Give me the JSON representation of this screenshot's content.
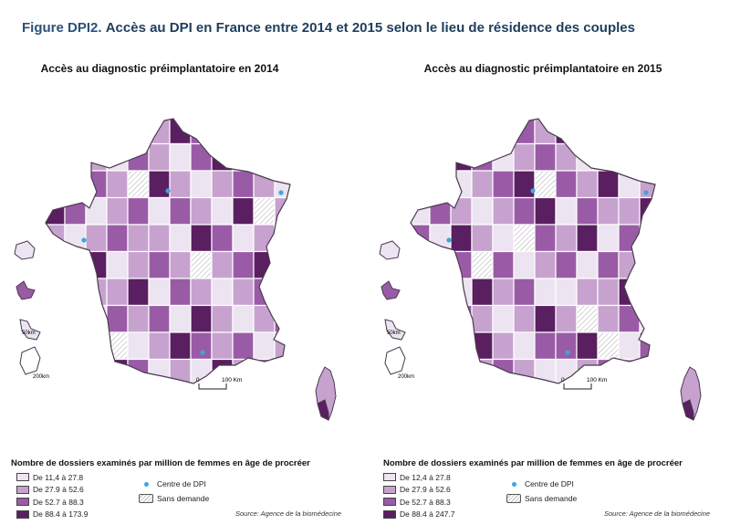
{
  "figure": {
    "label": "Figure DPI2.",
    "title": "Accès au DPI en France entre 2014 et 2015 selon le lieu de résidence des couples"
  },
  "colors": {
    "class1": "#ece4f1",
    "class2": "#c7a2cf",
    "class3": "#9a5ba6",
    "class4": "#5a1f60",
    "no_demand": "#ffffff",
    "centre_dot": "#3aa8d8",
    "border": "#4a3a4d"
  },
  "maps": [
    {
      "title": "Accès au diagnostic préimplantatoire en 2014",
      "scale_bar": {
        "zero": "0",
        "label": "100 Km"
      },
      "inset_scales": [
        "50km",
        "200km"
      ],
      "legend_title": "Nombre de dossiers examinés par million de femmes en âge de procréer",
      "legend": [
        {
          "label": "De 11,4 à 27.8",
          "class": "class1"
        },
        {
          "label": "De 27.9 à 52.6",
          "class": "class2"
        },
        {
          "label": "De 52.7 à 88.3",
          "class": "class3"
        },
        {
          "label": "De 88.4 à 173.9",
          "class": "class4"
        }
      ],
      "centre_label": "Centre de DPI",
      "no_demand_label": "Sans demande",
      "source": "Source: Agence de la biomédecine"
    },
    {
      "title": "Accès au diagnostic préimplantatoire en 2015",
      "scale_bar": {
        "zero": "0",
        "label": "100 Km"
      },
      "inset_scales": [
        "50km",
        "200km"
      ],
      "legend_title": "Nombre de dossiers examinés par million de femmes en âge de procréer",
      "legend": [
        {
          "label": "De 12,4 à 27.8",
          "class": "class1"
        },
        {
          "label": "De 27.9 à 52.6",
          "class": "class2"
        },
        {
          "label": "De 52.7 à 88.3",
          "class": "class3"
        },
        {
          "label": "De 88.4 à 247.7",
          "class": "class4"
        }
      ],
      "centre_label": "Centre de DPI",
      "no_demand_label": "Sans demande",
      "source": "Source: Agence de la biomédecine"
    }
  ]
}
